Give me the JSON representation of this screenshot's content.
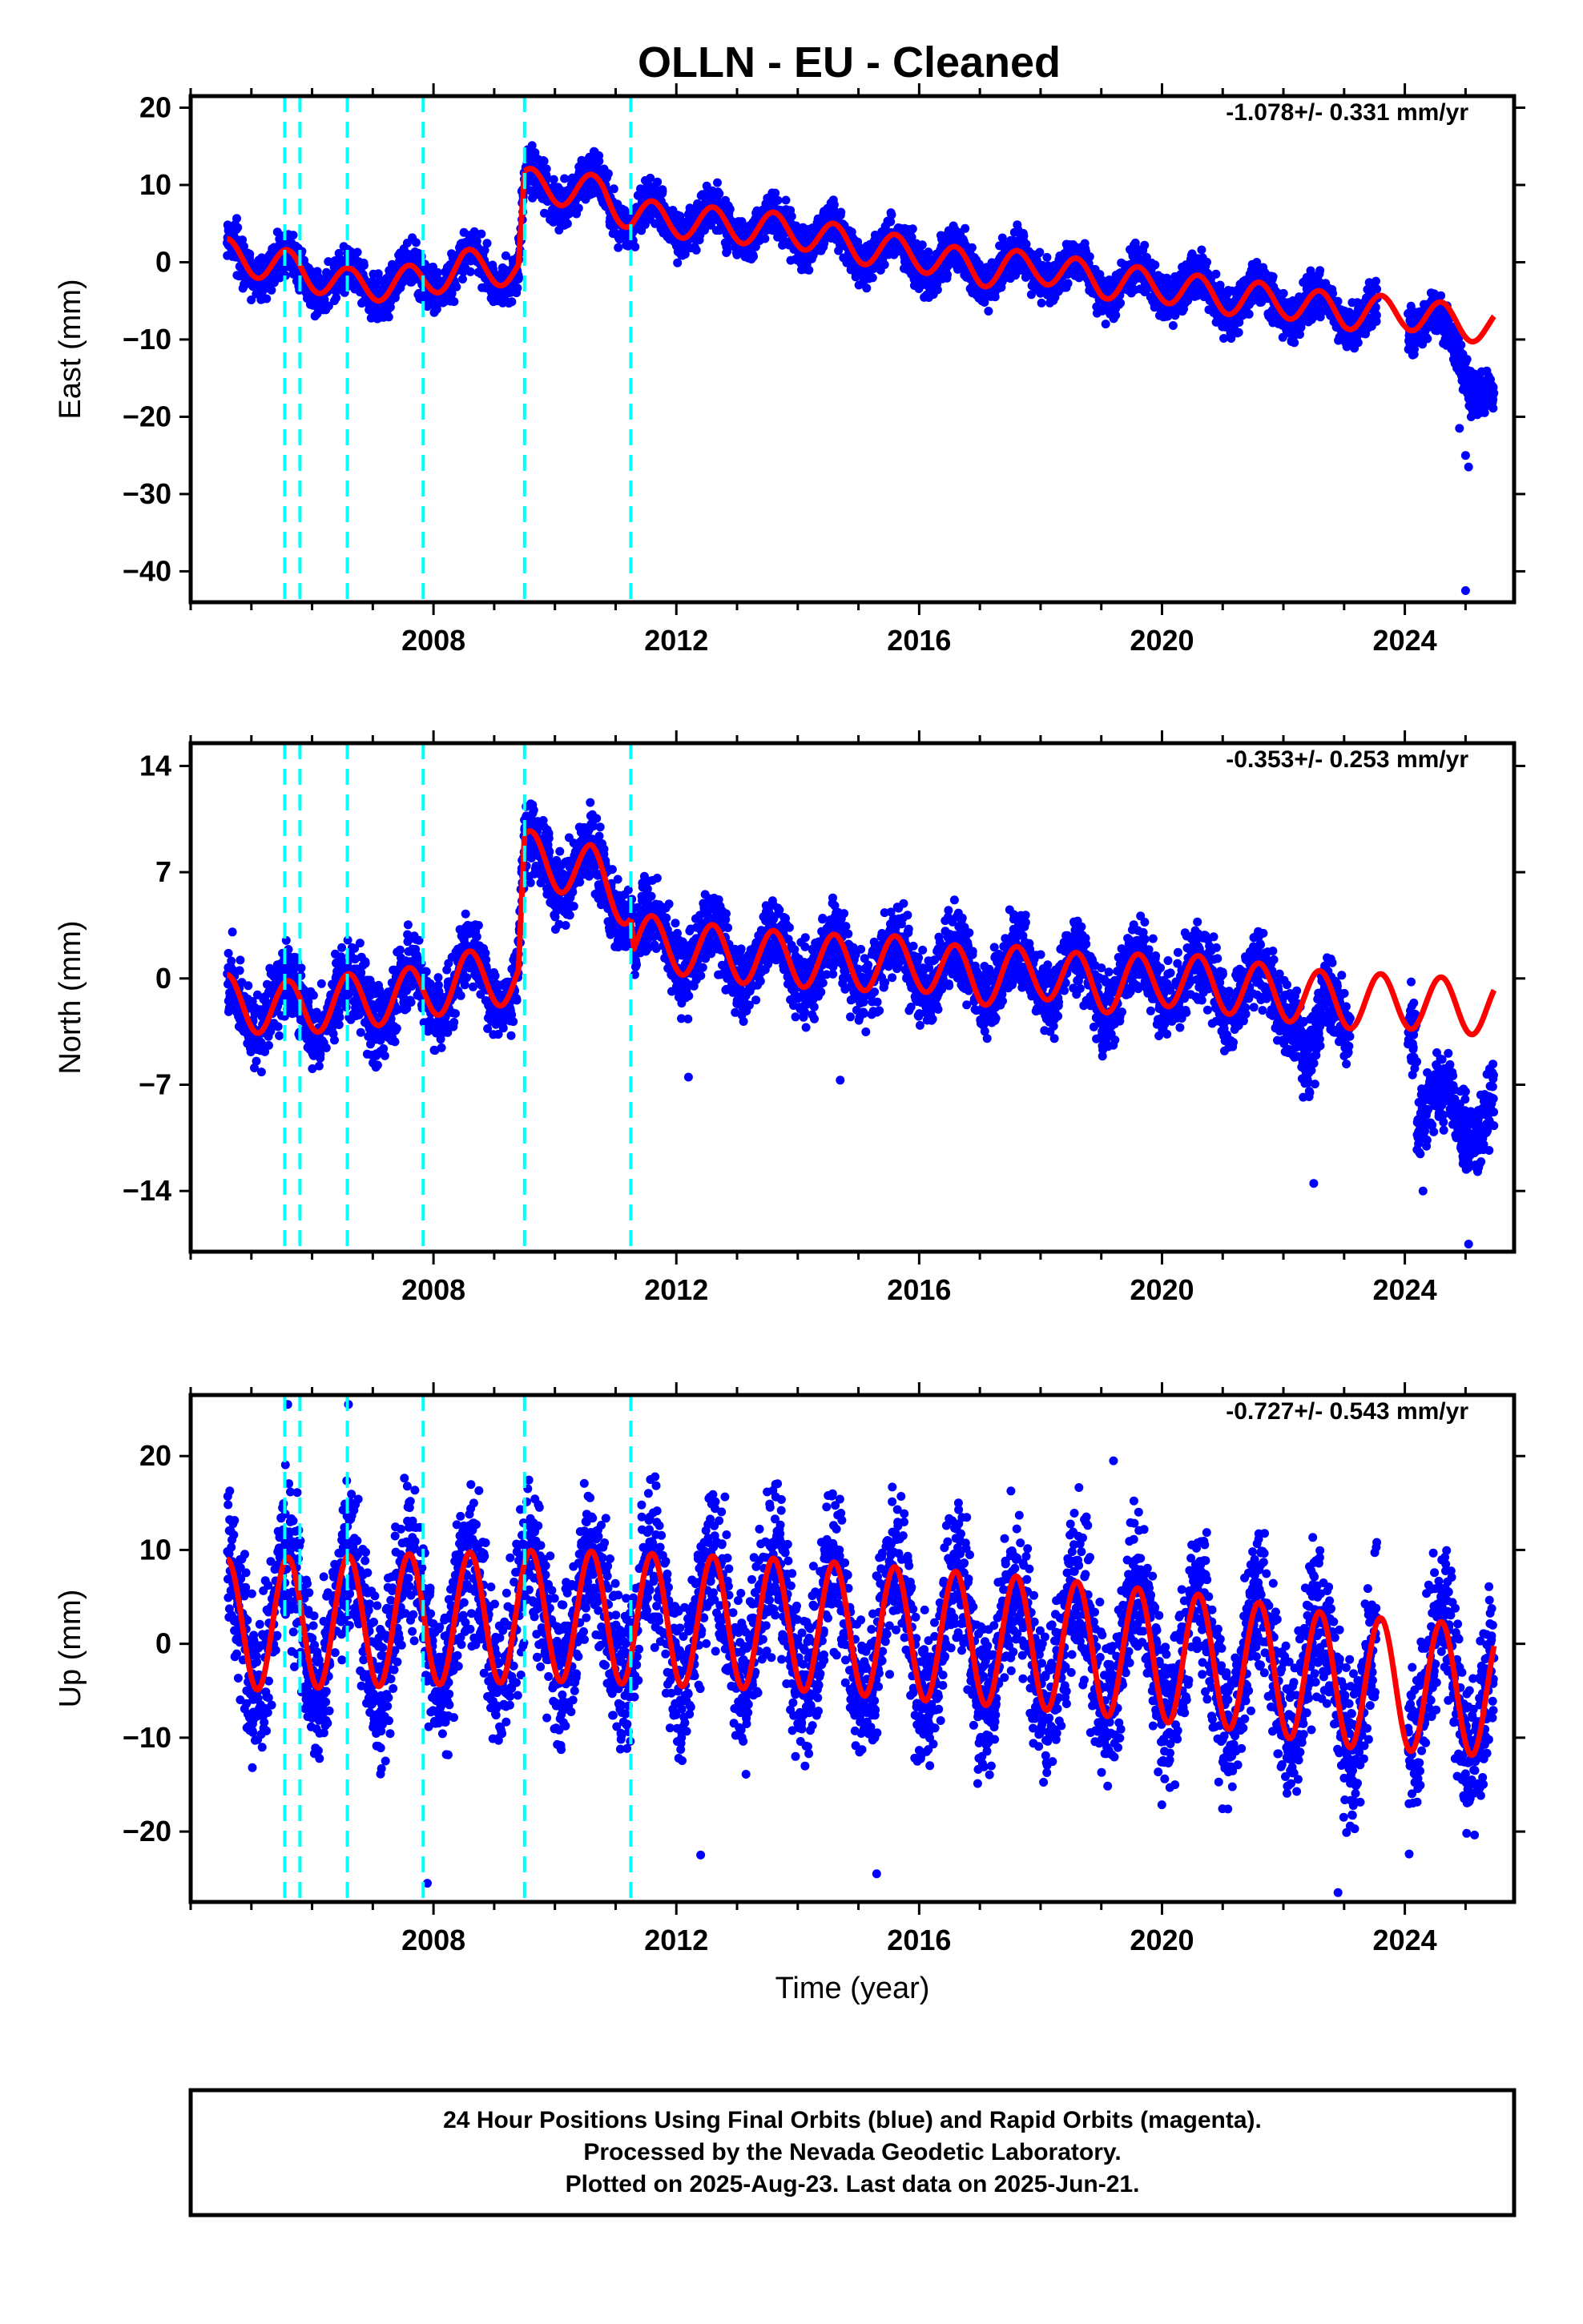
{
  "title": "OLLN  - EU - Cleaned",
  "colors": {
    "final_orbits": "#0000ff",
    "model": "#ff0000",
    "offsets": "#00ffff",
    "frame": "#000000"
  },
  "chart_data": [
    {
      "type": "scatter",
      "component": "east",
      "ylabel": "East (mm)",
      "xlabel": "",
      "rate": "-1.078+/- 0.331 mm/yr",
      "xlim": [
        2004.0,
        2025.8
      ],
      "ylim": [
        -44,
        21.5
      ],
      "yticks": [
        20,
        10,
        0,
        -10,
        -20,
        -30,
        -40
      ],
      "xticks": [
        2008,
        2012,
        2016,
        2020,
        2024
      ],
      "offsets": [
        2005.55,
        2005.8,
        2006.58,
        2007.83,
        2009.5,
        2011.25
      ],
      "model_breaks": [
        2009.5,
        2011.25
      ],
      "trend_knots": [
        [
          2004.5,
          1.0
        ],
        [
          2005.55,
          -0.5
        ],
        [
          2006.6,
          -3.0
        ],
        [
          2007.83,
          -2.5
        ],
        [
          2008.5,
          -0.5
        ],
        [
          2009.4,
          -1.0
        ],
        [
          2009.5,
          10.0
        ],
        [
          2010.8,
          9.0
        ],
        [
          2011.25,
          6.0
        ],
        [
          2012.5,
          5.0
        ],
        [
          2014.0,
          4.0
        ],
        [
          2015.0,
          2.0
        ],
        [
          2016.0,
          1.0
        ],
        [
          2017.0,
          -1.0
        ],
        [
          2018.0,
          -0.5
        ],
        [
          2019.0,
          -2.5
        ],
        [
          2020.0,
          -3.0
        ],
        [
          2021.0,
          -4.5
        ],
        [
          2022.0,
          -5.0
        ],
        [
          2023.0,
          -6.5
        ],
        [
          2024.0,
          -6.5
        ],
        [
          2025.4,
          -8.5
        ]
      ],
      "seasonal_amplitude": 2.2,
      "residual_sigma": 1.4,
      "outliers": [
        [
          2025.0,
          -25.0
        ],
        [
          2025.05,
          -26.5
        ],
        [
          2025.0,
          -42.5
        ],
        [
          2024.9,
          -21.5
        ]
      ],
      "data_end": 2025.47
    },
    {
      "type": "scatter",
      "component": "north",
      "ylabel": "North (mm)",
      "xlabel": "",
      "rate": "-0.353+/- 0.253 mm/yr",
      "xlim": [
        2004.0,
        2025.8
      ],
      "ylim": [
        -18,
        15.5
      ],
      "yticks": [
        14,
        7,
        0,
        -7,
        -14
      ],
      "xticks": [
        2008,
        2012,
        2016,
        2020,
        2024
      ],
      "offsets": [
        2005.55,
        2005.8,
        2006.58,
        2007.83,
        2009.5,
        2011.25
      ],
      "model_breaks": [
        2009.5,
        2011.25
      ],
      "trend_knots": [
        [
          2004.5,
          -1.5
        ],
        [
          2005.5,
          -2.0
        ],
        [
          2006.6,
          -1.5
        ],
        [
          2007.83,
          -1.0
        ],
        [
          2008.5,
          0.0
        ],
        [
          2009.4,
          0.0
        ],
        [
          2009.5,
          8.0
        ],
        [
          2010.6,
          7.0
        ],
        [
          2011.25,
          5.0
        ],
        [
          2011.3,
          2.5
        ],
        [
          2013.0,
          1.5
        ],
        [
          2015.0,
          1.0
        ],
        [
          2016.0,
          1.0
        ],
        [
          2017.0,
          0.0
        ],
        [
          2018.0,
          0.5
        ],
        [
          2019.0,
          -0.5
        ],
        [
          2020.0,
          0.0
        ],
        [
          2021.0,
          -0.5
        ],
        [
          2022.0,
          -1.0
        ],
        [
          2023.0,
          -1.5
        ],
        [
          2024.0,
          -1.5
        ],
        [
          2025.4,
          -2.0
        ]
      ],
      "seasonal_amplitude": 1.8,
      "residual_sigma": 1.2,
      "outliers": [
        [
          2022.5,
          -13.5
        ],
        [
          2024.3,
          -14.0
        ],
        [
          2025.05,
          -17.5
        ],
        [
          2012.2,
          -6.5
        ],
        [
          2014.7,
          -6.7
        ]
      ],
      "data_end": 2025.47
    },
    {
      "type": "scatter",
      "component": "up",
      "ylabel": "Up (mm)",
      "xlabel": "Time (year)",
      "rate": "-0.727+/- 0.543 mm/yr",
      "xlim": [
        2004.0,
        2025.8
      ],
      "ylim": [
        -27.5,
        26.5
      ],
      "yticks": [
        20,
        10,
        0,
        -10,
        -20
      ],
      "xticks": [
        2008,
        2012,
        2016,
        2020,
        2024
      ],
      "offsets": [
        2005.55,
        2005.8,
        2006.58,
        2007.83,
        2009.5,
        2011.25
      ],
      "model_breaks": [],
      "trend_knots": [
        [
          2004.5,
          2.0
        ],
        [
          2010.0,
          3.0
        ],
        [
          2014.0,
          2.0
        ],
        [
          2018.0,
          0.0
        ],
        [
          2021.0,
          -2.0
        ],
        [
          2023.0,
          -4.0
        ],
        [
          2025.4,
          -5.0
        ]
      ],
      "seasonal_amplitude": 7.0,
      "residual_sigma": 4.0,
      "outliers": [
        [
          2005.6,
          25.5
        ],
        [
          2006.6,
          25.5
        ],
        [
          2007.9,
          -25.5
        ],
        [
          2012.4,
          -22.5
        ],
        [
          2019.2,
          19.5
        ],
        [
          2022.9,
          -26.5
        ],
        [
          2015.3,
          -24.5
        ]
      ],
      "data_end": 2025.47
    }
  ],
  "footer": {
    "line1": "24 Hour Positions Using Final Orbits (blue) and Rapid Orbits (magenta).",
    "line2": "Processed by the Nevada Geodetic Laboratory.",
    "line3": "Plotted on 2025-Aug-23. Last data on 2025-Jun-21."
  }
}
